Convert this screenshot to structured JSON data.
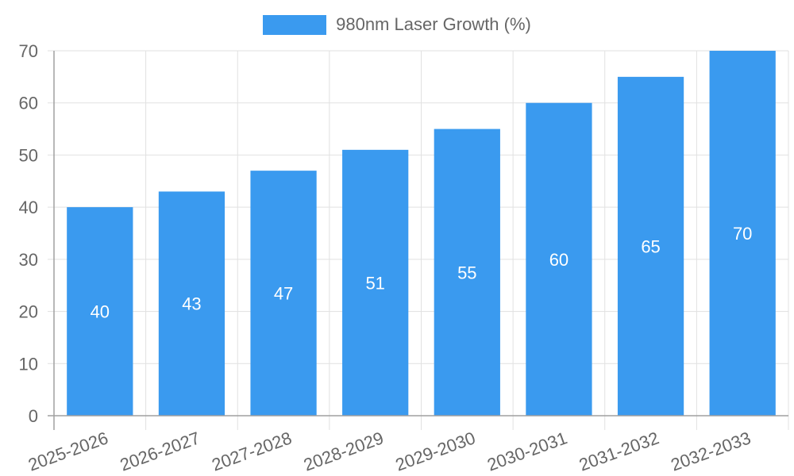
{
  "chart_data": {
    "type": "bar",
    "title": "",
    "xlabel": "",
    "ylabel": "",
    "categories": [
      "2025-2026",
      "2026-2027",
      "2027-2028",
      "2028-2029",
      "2029-2030",
      "2030-2031",
      "2031-2032",
      "2032-2033"
    ],
    "series": [
      {
        "name": "980nm Laser Growth (%)",
        "values": [
          40,
          43,
          47,
          51,
          55,
          60,
          65,
          70
        ],
        "color": "#3a9aef"
      }
    ],
    "ylim": [
      0,
      70
    ],
    "yticks": [
      0,
      10,
      20,
      30,
      40,
      50,
      60,
      70
    ],
    "grid": true,
    "legend_position": "top",
    "data_labels": true,
    "xtick_rotation": -20
  },
  "legend": {
    "label": "980nm Laser Growth (%)"
  }
}
